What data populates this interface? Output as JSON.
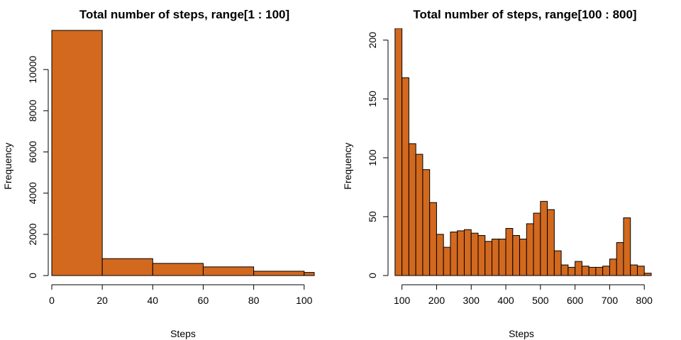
{
  "bar_color": "#D2691E",
  "chart_data": [
    {
      "type": "bar",
      "title": "Total number of steps, range[1 : 100]",
      "xlabel": "Steps",
      "ylabel": "Frequency",
      "xlim": [
        0,
        104
      ],
      "ylim": [
        0,
        12000
      ],
      "bin_edges": [
        0,
        20,
        40,
        60,
        80,
        100,
        104
      ],
      "values": [
        11900,
        820,
        590,
        420,
        210,
        150
      ],
      "x_ticks": [
        0,
        20,
        40,
        60,
        80,
        100
      ],
      "y_ticks": [
        0,
        2000,
        4000,
        6000,
        8000,
        10000
      ]
    },
    {
      "type": "bar",
      "title": "Total number of steps, range[100 : 800]",
      "xlabel": "Steps",
      "ylabel": "Frequency",
      "xlim": [
        70,
        820
      ],
      "ylim": [
        0,
        210
      ],
      "bin_edges": [
        80,
        100,
        120,
        140,
        160,
        180,
        200,
        220,
        240,
        260,
        280,
        300,
        320,
        340,
        360,
        380,
        400,
        420,
        440,
        460,
        480,
        500,
        520,
        540,
        560,
        580,
        600,
        620,
        640,
        660,
        680,
        700,
        720,
        740,
        760,
        780,
        800,
        820
      ],
      "values": [
        210,
        168,
        112,
        103,
        90,
        62,
        35,
        24,
        37,
        38,
        39,
        36,
        34,
        29,
        31,
        31,
        40,
        34,
        31,
        44,
        53,
        63,
        56,
        21,
        9,
        7,
        12,
        8,
        7,
        7,
        8,
        14,
        28,
        49,
        9,
        8,
        2
      ],
      "x_ticks": [
        100,
        200,
        300,
        400,
        500,
        600,
        700,
        800
      ],
      "y_ticks": [
        0,
        50,
        100,
        150,
        200
      ]
    }
  ]
}
